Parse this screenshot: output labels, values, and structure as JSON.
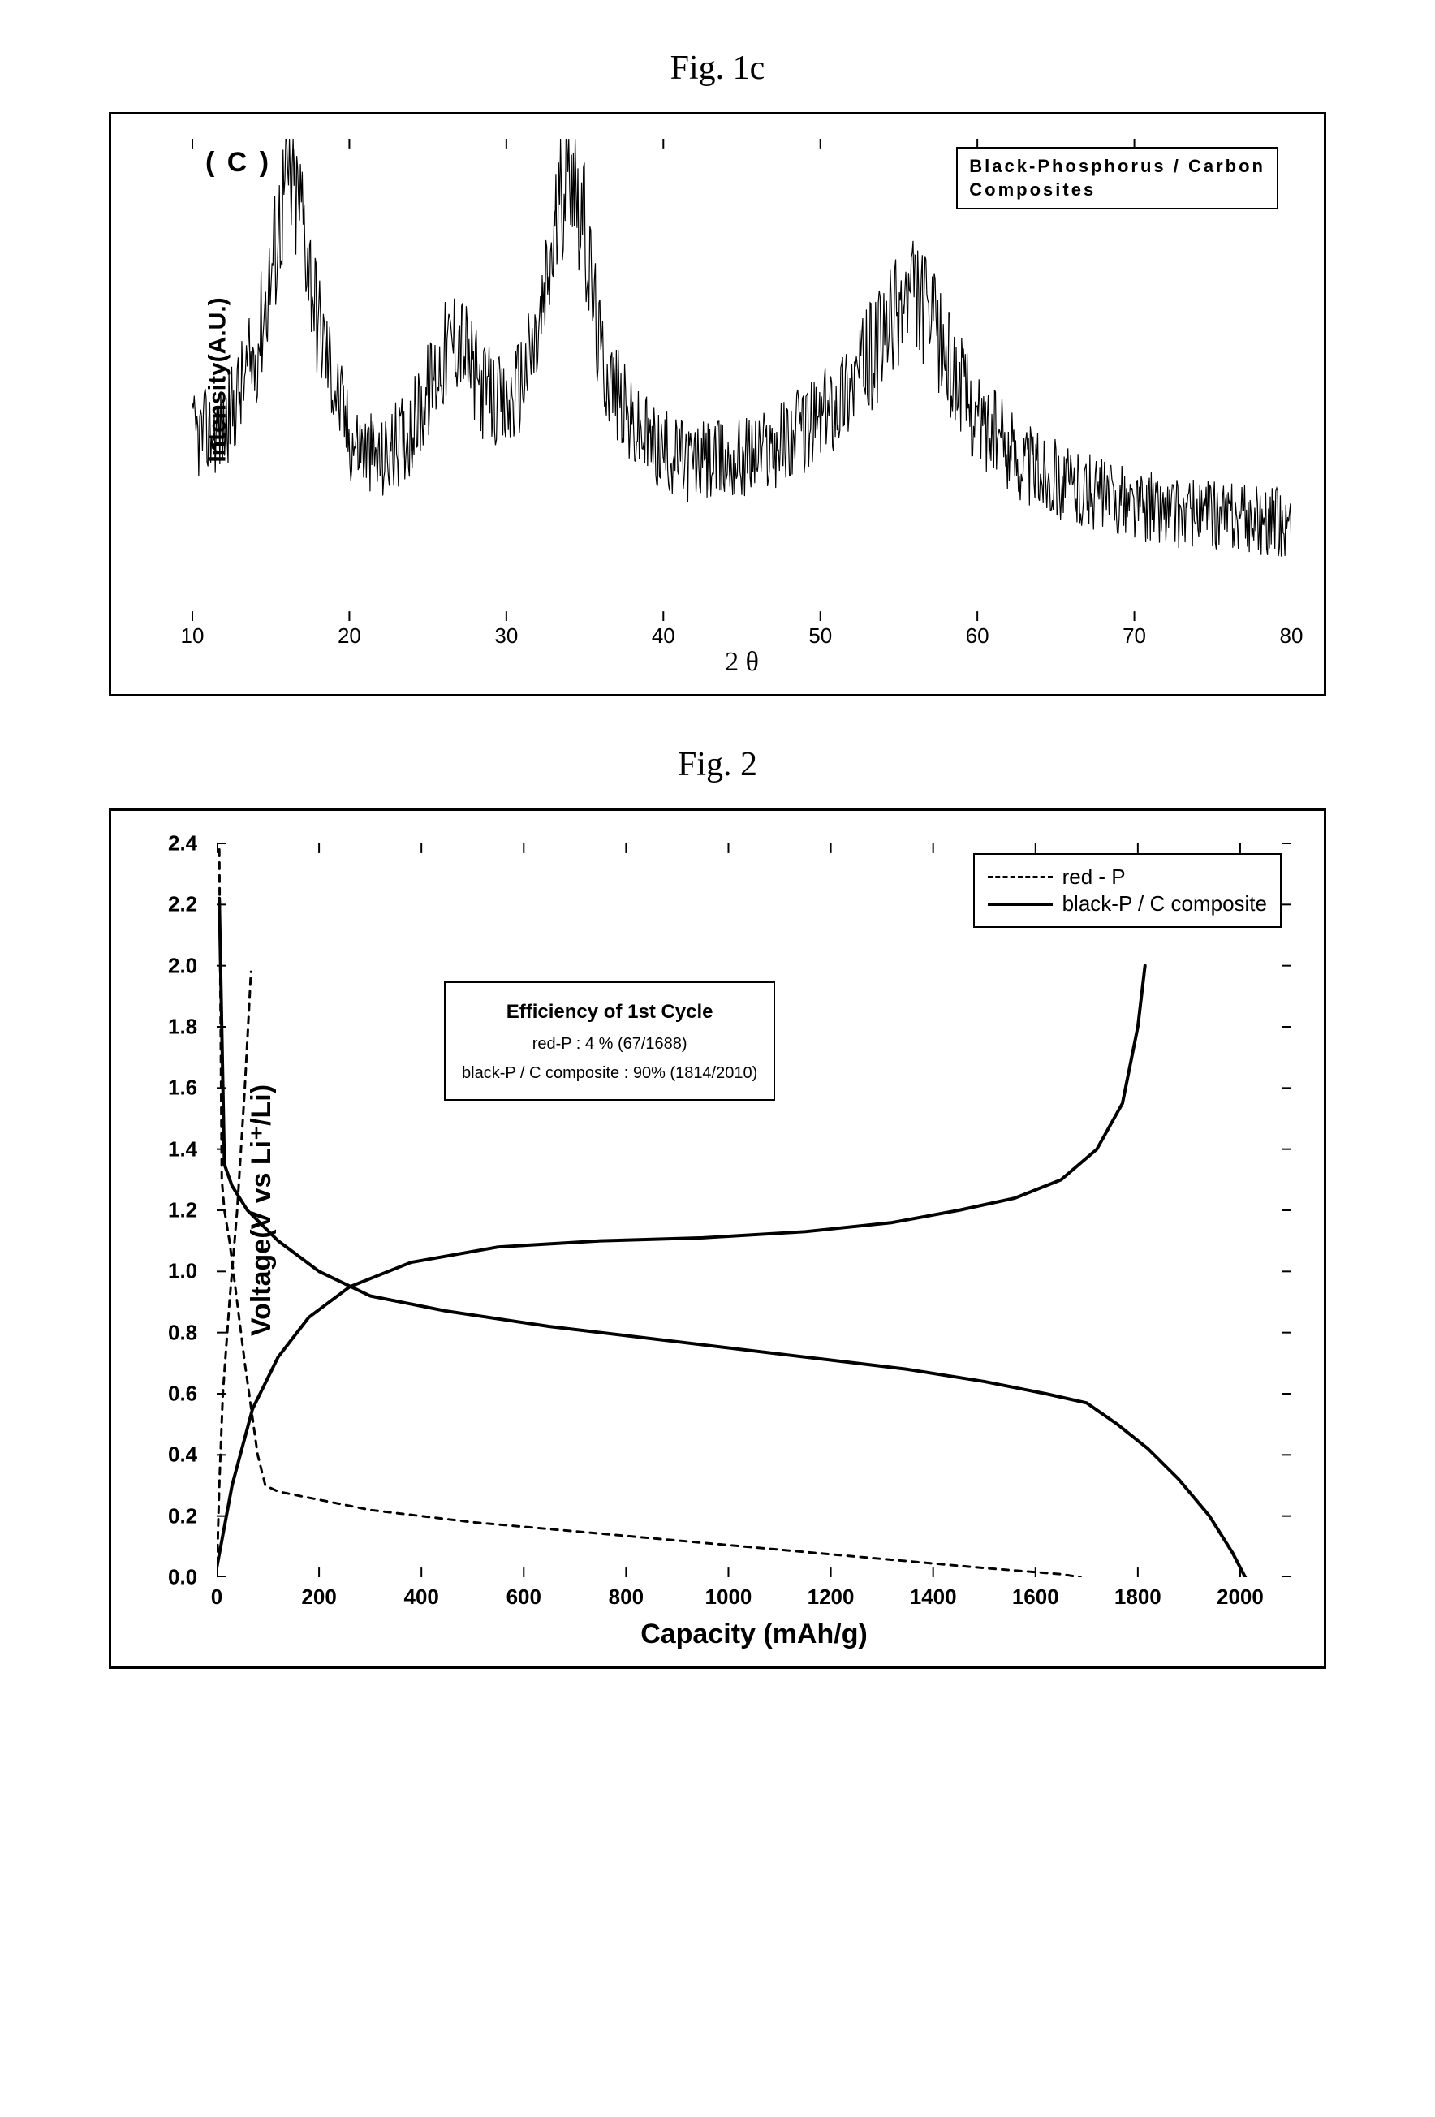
{
  "fig1c": {
    "title": "Fig. 1c",
    "panel_label": "( C )",
    "ylabel": "Intensity(A.U.)",
    "xlabel": "2 θ",
    "xlim": [
      10,
      80
    ],
    "xticks": [
      10,
      20,
      30,
      40,
      50,
      60,
      70,
      80
    ],
    "legend_lines": [
      "Black-Phosphorus / Carbon",
      "Composites"
    ],
    "type": "xrd-line",
    "background_color": "#ffffff",
    "series_color": "#000000",
    "border_color": "#000000",
    "line_width": 1.2,
    "title_fontsize": 42,
    "label_fontsize": 30,
    "tick_fontsize": 26,
    "legend_fontsize": 22,
    "envelope_points": [
      [
        10,
        0.38
      ],
      [
        12,
        0.4
      ],
      [
        14,
        0.55
      ],
      [
        15,
        0.72
      ],
      [
        16,
        0.92
      ],
      [
        17,
        0.85
      ],
      [
        18,
        0.62
      ],
      [
        20,
        0.38
      ],
      [
        22,
        0.33
      ],
      [
        24,
        0.4
      ],
      [
        26,
        0.55
      ],
      [
        27,
        0.6
      ],
      [
        28,
        0.5
      ],
      [
        30,
        0.43
      ],
      [
        32,
        0.58
      ],
      [
        33,
        0.78
      ],
      [
        34,
        1.0
      ],
      [
        35,
        0.8
      ],
      [
        36,
        0.55
      ],
      [
        38,
        0.4
      ],
      [
        40,
        0.35
      ],
      [
        42,
        0.33
      ],
      [
        44,
        0.33
      ],
      [
        46,
        0.35
      ],
      [
        48,
        0.38
      ],
      [
        50,
        0.42
      ],
      [
        52,
        0.5
      ],
      [
        54,
        0.58
      ],
      [
        55,
        0.65
      ],
      [
        56,
        0.68
      ],
      [
        57,
        0.62
      ],
      [
        58,
        0.55
      ],
      [
        60,
        0.42
      ],
      [
        63,
        0.33
      ],
      [
        66,
        0.28
      ],
      [
        70,
        0.24
      ],
      [
        74,
        0.22
      ],
      [
        78,
        0.21
      ],
      [
        80,
        0.2
      ]
    ],
    "noise_amplitude": 0.12,
    "baseline": 0.15
  },
  "fig2": {
    "title": "Fig. 2",
    "ylabel": "Voltage(V vs Li⁺/Li)",
    "xlabel": "Capacity (mAh/g)",
    "xlim": [
      0,
      2100
    ],
    "ylim": [
      0.0,
      2.4
    ],
    "xticks": [
      0,
      200,
      400,
      600,
      800,
      1000,
      1200,
      1400,
      1600,
      1800,
      2000
    ],
    "yticks": [
      0.0,
      0.2,
      0.4,
      0.6,
      0.8,
      1.0,
      1.2,
      1.4,
      1.6,
      1.8,
      2.0,
      2.2,
      2.4
    ],
    "type": "line",
    "background_color": "#ffffff",
    "axis_color": "#000000",
    "title_fontsize": 42,
    "label_fontsize": 34,
    "tick_fontsize": 26,
    "legend": {
      "position": "top-right",
      "fontsize": 26,
      "items": [
        {
          "label": "red - P",
          "dash": "8,8",
          "width": 3,
          "color": "#000000"
        },
        {
          "label": "black-P / C composite",
          "dash": "",
          "width": 4,
          "color": "#000000"
        }
      ]
    },
    "infobox": {
      "header": "Efficiency of 1st Cycle",
      "rows": [
        "red-P :  4 % (67/1688)",
        "black-P / C composite : 90% (1814/2010)"
      ],
      "header_fontsize": 24,
      "row_fontsize": 20
    },
    "series": {
      "redP_discharge": {
        "color": "#000000",
        "dash": "8,8",
        "width": 3,
        "points": [
          [
            5,
            2.38
          ],
          [
            10,
            1.3
          ],
          [
            15,
            1.2
          ],
          [
            25,
            1.1
          ],
          [
            40,
            0.9
          ],
          [
            55,
            0.7
          ],
          [
            65,
            0.58
          ],
          [
            80,
            0.4
          ],
          [
            95,
            0.3
          ],
          [
            120,
            0.28
          ],
          [
            180,
            0.26
          ],
          [
            300,
            0.22
          ],
          [
            500,
            0.18
          ],
          [
            700,
            0.15
          ],
          [
            900,
            0.12
          ],
          [
            1100,
            0.09
          ],
          [
            1300,
            0.06
          ],
          [
            1500,
            0.03
          ],
          [
            1650,
            0.01
          ],
          [
            1688,
            0.0
          ]
        ]
      },
      "redP_charge": {
        "color": "#000000",
        "dash": "8,8",
        "width": 3,
        "points": [
          [
            0,
            0.0
          ],
          [
            5,
            0.3
          ],
          [
            12,
            0.6
          ],
          [
            25,
            0.9
          ],
          [
            40,
            1.2
          ],
          [
            55,
            1.6
          ],
          [
            67,
            1.98
          ]
        ]
      },
      "blackPC_discharge": {
        "color": "#000000",
        "dash": "",
        "width": 4,
        "points": [
          [
            5,
            2.22
          ],
          [
            15,
            1.35
          ],
          [
            30,
            1.28
          ],
          [
            60,
            1.2
          ],
          [
            120,
            1.1
          ],
          [
            200,
            1.0
          ],
          [
            300,
            0.92
          ],
          [
            450,
            0.87
          ],
          [
            650,
            0.82
          ],
          [
            900,
            0.77
          ],
          [
            1150,
            0.72
          ],
          [
            1350,
            0.68
          ],
          [
            1500,
            0.64
          ],
          [
            1620,
            0.6
          ],
          [
            1700,
            0.57
          ],
          [
            1760,
            0.5
          ],
          [
            1820,
            0.42
          ],
          [
            1880,
            0.32
          ],
          [
            1940,
            0.2
          ],
          [
            1985,
            0.08
          ],
          [
            2010,
            0.0
          ]
        ]
      },
      "blackPC_charge": {
        "color": "#000000",
        "dash": "",
        "width": 4,
        "points": [
          [
            0,
            0.03
          ],
          [
            30,
            0.3
          ],
          [
            70,
            0.55
          ],
          [
            120,
            0.72
          ],
          [
            180,
            0.85
          ],
          [
            260,
            0.95
          ],
          [
            380,
            1.03
          ],
          [
            550,
            1.08
          ],
          [
            750,
            1.1
          ],
          [
            950,
            1.11
          ],
          [
            1150,
            1.13
          ],
          [
            1320,
            1.16
          ],
          [
            1450,
            1.2
          ],
          [
            1560,
            1.24
          ],
          [
            1650,
            1.3
          ],
          [
            1720,
            1.4
          ],
          [
            1770,
            1.55
          ],
          [
            1800,
            1.8
          ],
          [
            1814,
            2.0
          ]
        ]
      }
    }
  }
}
